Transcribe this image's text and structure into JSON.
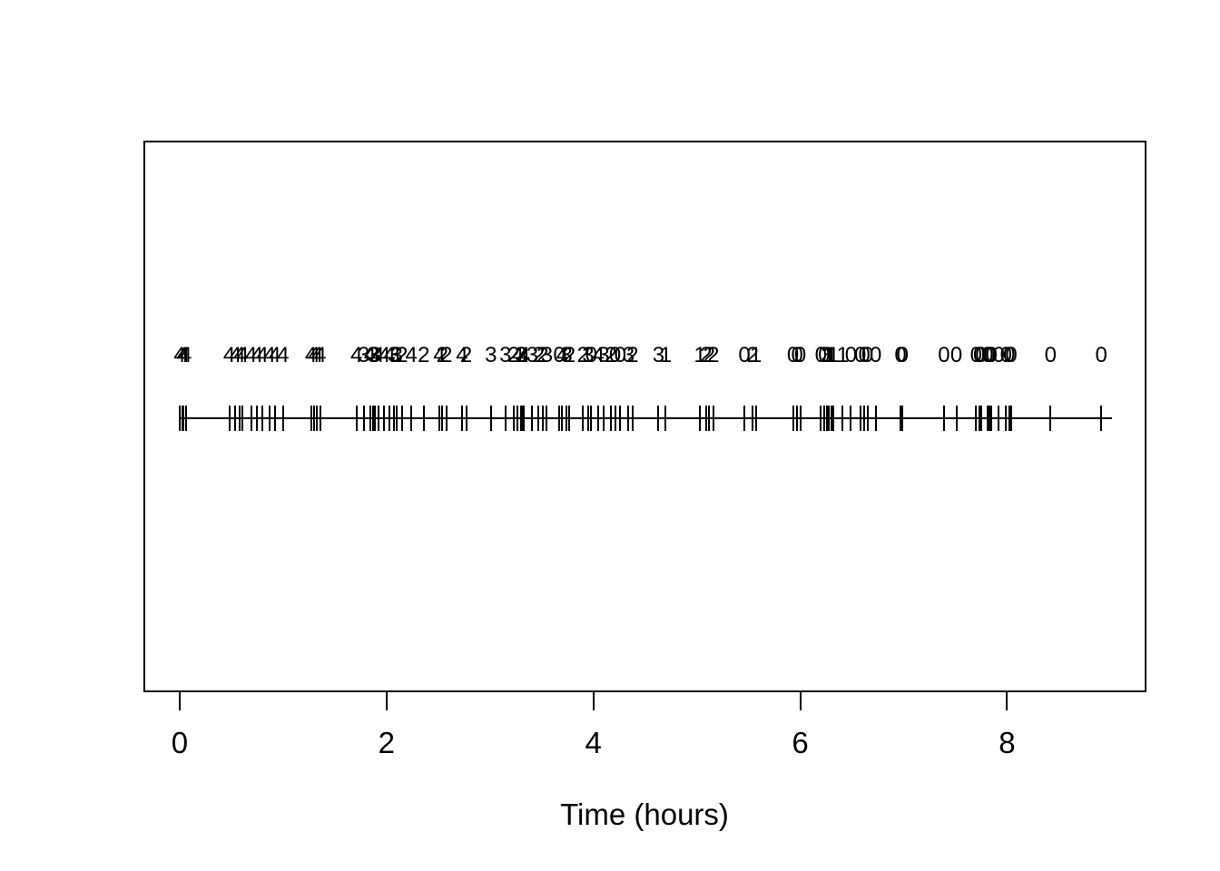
{
  "colors": {
    "background": "#ffffff",
    "foreground": "#000000"
  },
  "chart_data": {
    "type": "scatter",
    "subtype": "event-timeline-rug-with-count-labels",
    "title": "",
    "xlabel": "Time (hours)",
    "ylabel": "",
    "xlim": [
      -0.35,
      9.33
    ],
    "xticks": [
      0,
      2,
      4,
      6,
      8
    ],
    "xtick_labels": [
      "0",
      "2",
      "4",
      "6",
      "8"
    ],
    "grid": "off",
    "legend": "none",
    "timeline": {
      "start": 0,
      "end": 9.01
    },
    "events": {
      "times": [
        0.0,
        0.03,
        0.04,
        0.06,
        0.48,
        0.54,
        0.58,
        0.61,
        0.69,
        0.75,
        0.8,
        0.87,
        0.92,
        1.0,
        1.27,
        1.3,
        1.33,
        1.36,
        1.71,
        1.78,
        1.84,
        1.87,
        1.89,
        1.92,
        1.98,
        2.03,
        2.07,
        2.1,
        2.15,
        2.24,
        2.36,
        2.51,
        2.54,
        2.58,
        2.73,
        2.77,
        3.01,
        3.15,
        3.23,
        3.27,
        3.3,
        3.31,
        3.33,
        3.41,
        3.47,
        3.51,
        3.55,
        3.67,
        3.7,
        3.74,
        3.77,
        3.9,
        3.95,
        3.98,
        4.05,
        4.1,
        4.17,
        4.21,
        4.26,
        4.34,
        4.38,
        4.63,
        4.7,
        5.03,
        5.09,
        5.12,
        5.16,
        5.46,
        5.54,
        5.57,
        5.93,
        5.97,
        6.0,
        6.2,
        6.23,
        6.26,
        6.28,
        6.3,
        6.32,
        6.41,
        6.49,
        6.58,
        6.62,
        6.65,
        6.73,
        6.97,
        6.99,
        7.39,
        7.51,
        7.7,
        7.73,
        7.75,
        7.81,
        7.83,
        7.85,
        7.92,
        7.99,
        8.02,
        8.04,
        8.42,
        8.91
      ],
      "labels": [
        4,
        4,
        4,
        4,
        4,
        4,
        4,
        4,
        4,
        4,
        4,
        4,
        4,
        4,
        4,
        4,
        4,
        4,
        4,
        3,
        4,
        3,
        3,
        4,
        4,
        4,
        3,
        3,
        2,
        4,
        2,
        4,
        2,
        2,
        4,
        2,
        3,
        3,
        2,
        4,
        3,
        2,
        4,
        3,
        2,
        2,
        3,
        0,
        4,
        3,
        2,
        2,
        3,
        0,
        4,
        3,
        2,
        0,
        0,
        3,
        2,
        3,
        1,
        1,
        2,
        2,
        2,
        0,
        2,
        1,
        0,
        0,
        0,
        0,
        0,
        3,
        1,
        1,
        1,
        1,
        0,
        0,
        0,
        0,
        0,
        0,
        0,
        0,
        0,
        0,
        0,
        0,
        0,
        0,
        0,
        0,
        0,
        0,
        0,
        0,
        0
      ]
    }
  }
}
